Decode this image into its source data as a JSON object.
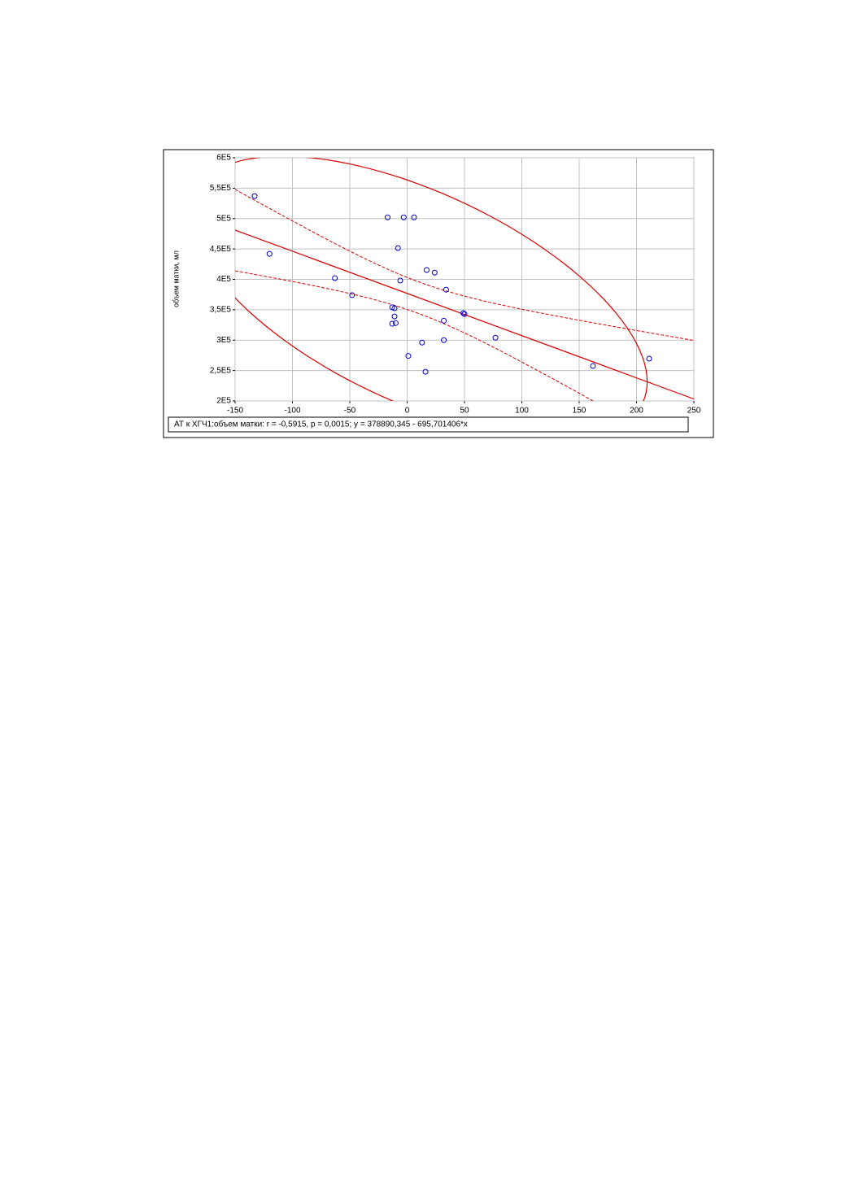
{
  "chart_data": {
    "type": "scatter",
    "y_label": "объем матки, мл",
    "legend_text": "АТ к ХГЧ1:объем матки:   r = -0,5915, p = 0,0015;  y = 378890,345 - 695,701406*x",
    "color": "#0000cc",
    "fit_color": "#dd0000",
    "grid": true,
    "xlim": [
      -150,
      250
    ],
    "xticks": [
      -150,
      -100,
      -50,
      0,
      50,
      100,
      150,
      200,
      250
    ],
    "ylim": [
      200000,
      600000
    ],
    "yticks": [
      {
        "value": 200000,
        "label": "2E5"
      },
      {
        "value": 250000,
        "label": "2,5E5"
      },
      {
        "value": 300000,
        "label": "3E5"
      },
      {
        "value": 350000,
        "label": "3,5E5"
      },
      {
        "value": 400000,
        "label": "4E5"
      },
      {
        "value": 450000,
        "label": "4,5E5"
      },
      {
        "value": 500000,
        "label": "5E5"
      },
      {
        "value": 550000,
        "label": "5,5E5"
      },
      {
        "value": 600000,
        "label": "6E5"
      }
    ],
    "x": [
      -133,
      -120,
      -63,
      -48,
      -17,
      -3,
      6,
      -8,
      -6,
      17,
      24,
      34,
      -13,
      -11,
      -11,
      -13,
      -10,
      32,
      49,
      50,
      77,
      32,
      13,
      1,
      16,
      162,
      211
    ],
    "values": [
      537000,
      442000,
      402000,
      374000,
      502000,
      502000,
      502000,
      451500,
      398000,
      415400,
      411000,
      383000,
      354000,
      352500,
      339000,
      327000,
      328000,
      332000,
      344500,
      343000,
      304000,
      300000,
      296000,
      274000,
      248000,
      257500,
      269600
    ]
  }
}
